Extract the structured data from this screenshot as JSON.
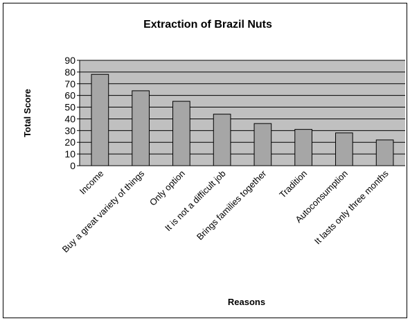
{
  "chart_data": {
    "type": "bar",
    "title": "Extraction of Brazil Nuts",
    "x_label": "Reasons",
    "y_label": "Total Score",
    "categories": [
      "Income",
      "Buy a great variety of things",
      "Only option",
      "It is not a difficult job",
      "Brings families together",
      "Tradition",
      "Autoconsumption",
      "It lasts only three months"
    ],
    "values": [
      78,
      64,
      55,
      44,
      36,
      31,
      28,
      22
    ],
    "color": "#a6a6a6",
    "ylim": [
      0,
      90
    ],
    "yticks": [
      0,
      10,
      20,
      30,
      40,
      50,
      60,
      70,
      80,
      90
    ],
    "grid": true
  }
}
